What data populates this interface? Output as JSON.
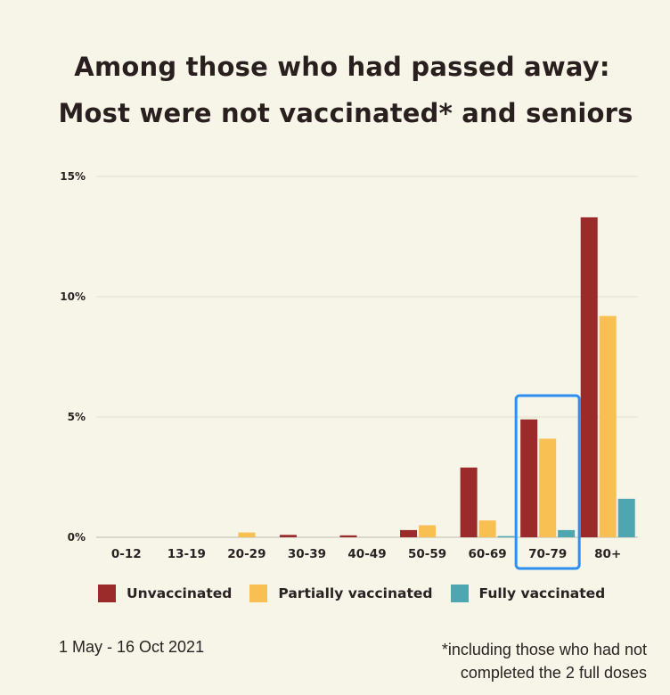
{
  "title_lines": [
    "Among those who had passed away:",
    "Most were not vaccinated* and seniors"
  ],
  "chart_data": {
    "type": "bar",
    "categories": [
      "0-12",
      "13-19",
      "20-29",
      "30-39",
      "40-49",
      "50-59",
      "60-69",
      "70-79",
      "80+"
    ],
    "series": [
      {
        "name": "Unvaccinated",
        "color": "#9b2a2a",
        "values": [
          0,
          0,
          0,
          0.1,
          0.08,
          0.3,
          2.9,
          4.9,
          13.3
        ]
      },
      {
        "name": "Partially vaccinated",
        "color": "#f8c053",
        "values": [
          0,
          0,
          0.2,
          0,
          0,
          0.5,
          0.7,
          4.1,
          9.2
        ]
      },
      {
        "name": "Fully vaccinated",
        "color": "#4ea7b0",
        "values": [
          0,
          0,
          0,
          0,
          0,
          0,
          0.05,
          0.3,
          1.6
        ]
      }
    ],
    "y_ticks": [
      "0%",
      "5%",
      "10%",
      "15%"
    ],
    "ylim": [
      0,
      15
    ],
    "highlighted_category": "70-79",
    "highlight_color": "#2e8ff0",
    "grid": true
  },
  "footer": {
    "date_range": "1 May - 16 Oct 2021",
    "note_line1": "*including those who had not",
    "note_line2": "completed the 2 full doses"
  }
}
